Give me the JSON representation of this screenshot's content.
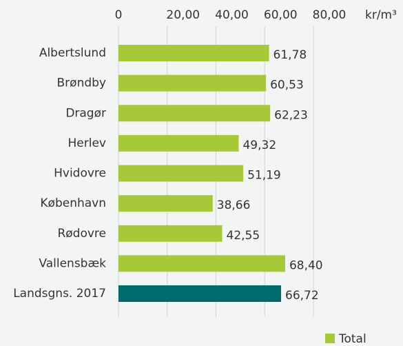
{
  "chart_data": {
    "type": "bar",
    "orientation": "horizontal",
    "x_label": "kr/m³",
    "categories": [
      "Albertslund",
      "Brøndby",
      "Dragør",
      "Herlev",
      "Hvidovre",
      "København",
      "Rødovre",
      "Vallensbæk",
      "Landsgns. 2017"
    ],
    "series": [
      {
        "name": "Total",
        "color": "#a6c93a",
        "values": [
          61.78,
          60.53,
          62.23,
          49.32,
          51.19,
          38.66,
          42.55,
          68.4,
          66.72
        ],
        "value_labels": [
          "61,78",
          "60,53",
          "62,23",
          "49,32",
          "51,19",
          "38,66",
          "42,55",
          "68,40",
          "66,72"
        ],
        "colors": [
          "#a6c93a",
          "#a6c93a",
          "#a6c93a",
          "#a6c93a",
          "#a6c93a",
          "#a6c93a",
          "#a6c93a",
          "#a6c93a",
          "#006b6e"
        ]
      }
    ],
    "xlim": [
      0,
      80
    ],
    "xticks": [
      0,
      {
        "value": 20,
        "label": "20,00"
      },
      {
        "value": 40,
        "label": "40,00"
      },
      {
        "value": 60,
        "label": "60,00"
      },
      {
        "value": 80,
        "label": "80,00"
      }
    ],
    "grid": true,
    "legend": "bottom-right"
  }
}
